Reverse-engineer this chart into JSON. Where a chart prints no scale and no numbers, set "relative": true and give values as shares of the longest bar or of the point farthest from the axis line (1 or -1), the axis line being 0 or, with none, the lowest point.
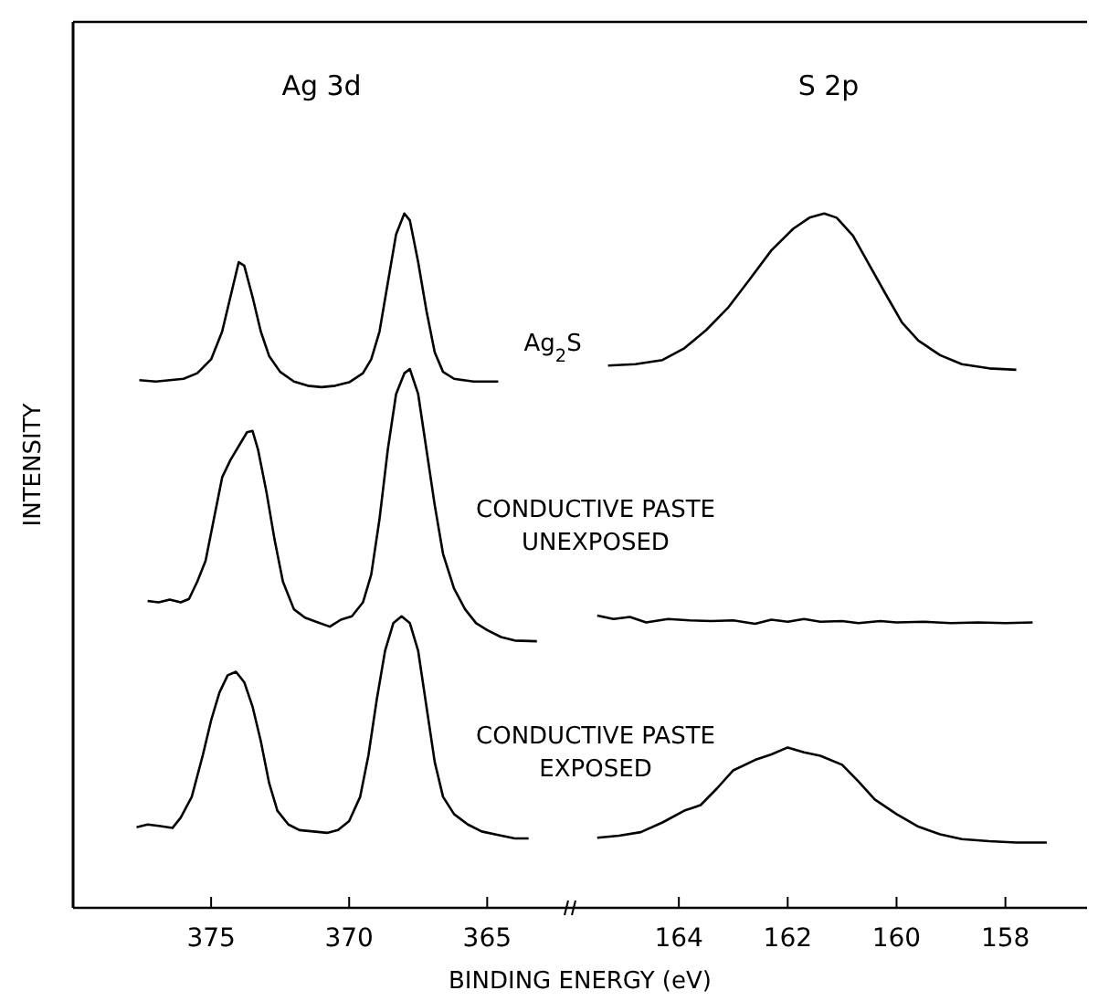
{
  "chart_data": [
    {
      "type": "line",
      "title": "Ag 3d",
      "xlabel": "BINDING ENERGY (eV)",
      "ylabel": "INTENSITY",
      "relative": true,
      "xlim": [
        380,
        362
      ],
      "xticks": [
        375,
        370,
        365
      ],
      "series": [
        {
          "name": "Ag$_{2}$S",
          "color": "#000000",
          "x": [
            377.6,
            377,
            376.5,
            376,
            375.5,
            375,
            374.6,
            374.3,
            374.0,
            373.8,
            373.5,
            373.2,
            372.9,
            372.5,
            372,
            371.5,
            371,
            370.5,
            370,
            369.5,
            369.2,
            368.9,
            368.6,
            368.3,
            368.0,
            367.8,
            367.5,
            367.2,
            366.9,
            366.6,
            366.2,
            365.5,
            364.6
          ],
          "values": [
            0.76,
            0.758,
            0.76,
            0.762,
            0.77,
            0.79,
            0.83,
            0.88,
            0.93,
            0.925,
            0.88,
            0.83,
            0.795,
            0.772,
            0.758,
            0.752,
            0.75,
            0.752,
            0.757,
            0.77,
            0.79,
            0.83,
            0.9,
            0.97,
            1.0,
            0.99,
            0.93,
            0.86,
            0.8,
            0.772,
            0.762,
            0.758,
            0.758
          ]
        },
        {
          "name": "CONDUCTIVE PASTE UNEXPOSED",
          "color": "#000000",
          "x": [
            377.3,
            376.9,
            376.5,
            376.1,
            375.8,
            375.5,
            375.2,
            374.9,
            374.6,
            374.3,
            374.0,
            373.7,
            373.5,
            373.3,
            373.0,
            372.7,
            372.4,
            372.0,
            371.6,
            371.2,
            370.7,
            370.3,
            369.9,
            369.5,
            369.2,
            368.9,
            368.6,
            368.3,
            368.0,
            367.8,
            367.5,
            367.2,
            366.9,
            366.6,
            366.2,
            365.8,
            365.4,
            365.0,
            364.5,
            364.0,
            363.2
          ],
          "values": [
            0.442,
            0.44,
            0.444,
            0.44,
            0.445,
            0.47,
            0.5,
            0.56,
            0.62,
            0.645,
            0.665,
            0.685,
            0.687,
            0.66,
            0.6,
            0.53,
            0.47,
            0.43,
            0.418,
            0.412,
            0.405,
            0.415,
            0.42,
            0.44,
            0.48,
            0.56,
            0.66,
            0.74,
            0.77,
            0.776,
            0.74,
            0.66,
            0.58,
            0.51,
            0.46,
            0.43,
            0.41,
            0.4,
            0.39,
            0.385,
            0.384
          ]
        },
        {
          "name": "CONDUCTIVE PASTE EXPOSED",
          "color": "#000000",
          "x": [
            377.7,
            377.3,
            376.9,
            376.4,
            376.1,
            375.7,
            375.3,
            375.0,
            374.7,
            374.4,
            374.1,
            373.8,
            373.5,
            373.2,
            372.9,
            372.6,
            372.2,
            371.8,
            371.3,
            370.8,
            370.4,
            370.0,
            369.6,
            369.3,
            369.0,
            368.7,
            368.4,
            368.1,
            367.8,
            367.5,
            367.2,
            366.9,
            366.6,
            366.2,
            365.7,
            365.2,
            364.6,
            364.0,
            363.5
          ],
          "values": [
            0.116,
            0.12,
            0.118,
            0.115,
            0.13,
            0.16,
            0.22,
            0.27,
            0.31,
            0.335,
            0.34,
            0.325,
            0.29,
            0.24,
            0.18,
            0.14,
            0.12,
            0.112,
            0.11,
            0.108,
            0.112,
            0.125,
            0.16,
            0.22,
            0.3,
            0.37,
            0.41,
            0.42,
            0.41,
            0.37,
            0.29,
            0.21,
            0.16,
            0.135,
            0.12,
            0.11,
            0.105,
            0.1,
            0.1
          ]
        }
      ]
    },
    {
      "type": "line",
      "title": "S 2p",
      "relative": true,
      "xlim": [
        166,
        156.5
      ],
      "xticks": [
        164,
        162,
        160,
        158
      ],
      "series": [
        {
          "color": "#000000",
          "x": [
            165.3,
            164.8,
            164.3,
            163.9,
            163.5,
            163.1,
            162.7,
            162.3,
            161.9,
            161.6,
            161.33,
            161.1,
            160.8,
            160.5,
            160.2,
            159.9,
            159.6,
            159.2,
            158.8,
            158.3,
            157.8
          ],
          "values": [
            0.781,
            0.783,
            0.789,
            0.806,
            0.832,
            0.864,
            0.905,
            0.947,
            0.978,
            0.994,
            1.0,
            0.994,
            0.968,
            0.926,
            0.884,
            0.843,
            0.817,
            0.796,
            0.783,
            0.777,
            0.775
          ]
        },
        {
          "color": "#000000",
          "x": [
            165.5,
            165.2,
            164.9,
            164.6,
            164.2,
            163.8,
            163.4,
            163.0,
            162.6,
            162.3,
            162.0,
            161.7,
            161.4,
            161.0,
            160.7,
            160.3,
            160.0,
            159.5,
            159.0,
            158.5,
            158.0,
            157.5
          ],
          "values": [
            0.421,
            0.416,
            0.419,
            0.411,
            0.416,
            0.414,
            0.413,
            0.414,
            0.409,
            0.415,
            0.412,
            0.416,
            0.412,
            0.413,
            0.41,
            0.413,
            0.411,
            0.412,
            0.41,
            0.411,
            0.41,
            0.411
          ]
        },
        {
          "color": "#000000",
          "x": [
            165.5,
            165.1,
            164.7,
            164.3,
            163.9,
            163.6,
            163.3,
            163.0,
            162.6,
            162.3,
            162.0,
            161.7,
            161.4,
            161.0,
            160.7,
            160.4,
            160.0,
            159.6,
            159.2,
            158.8,
            158.3,
            157.8,
            157.24
          ],
          "values": [
            0.101,
            0.104,
            0.109,
            0.123,
            0.14,
            0.148,
            0.172,
            0.198,
            0.213,
            0.221,
            0.231,
            0.224,
            0.219,
            0.206,
            0.182,
            0.156,
            0.135,
            0.117,
            0.106,
            0.099,
            0.096,
            0.094,
            0.094
          ]
        }
      ]
    }
  ]
}
